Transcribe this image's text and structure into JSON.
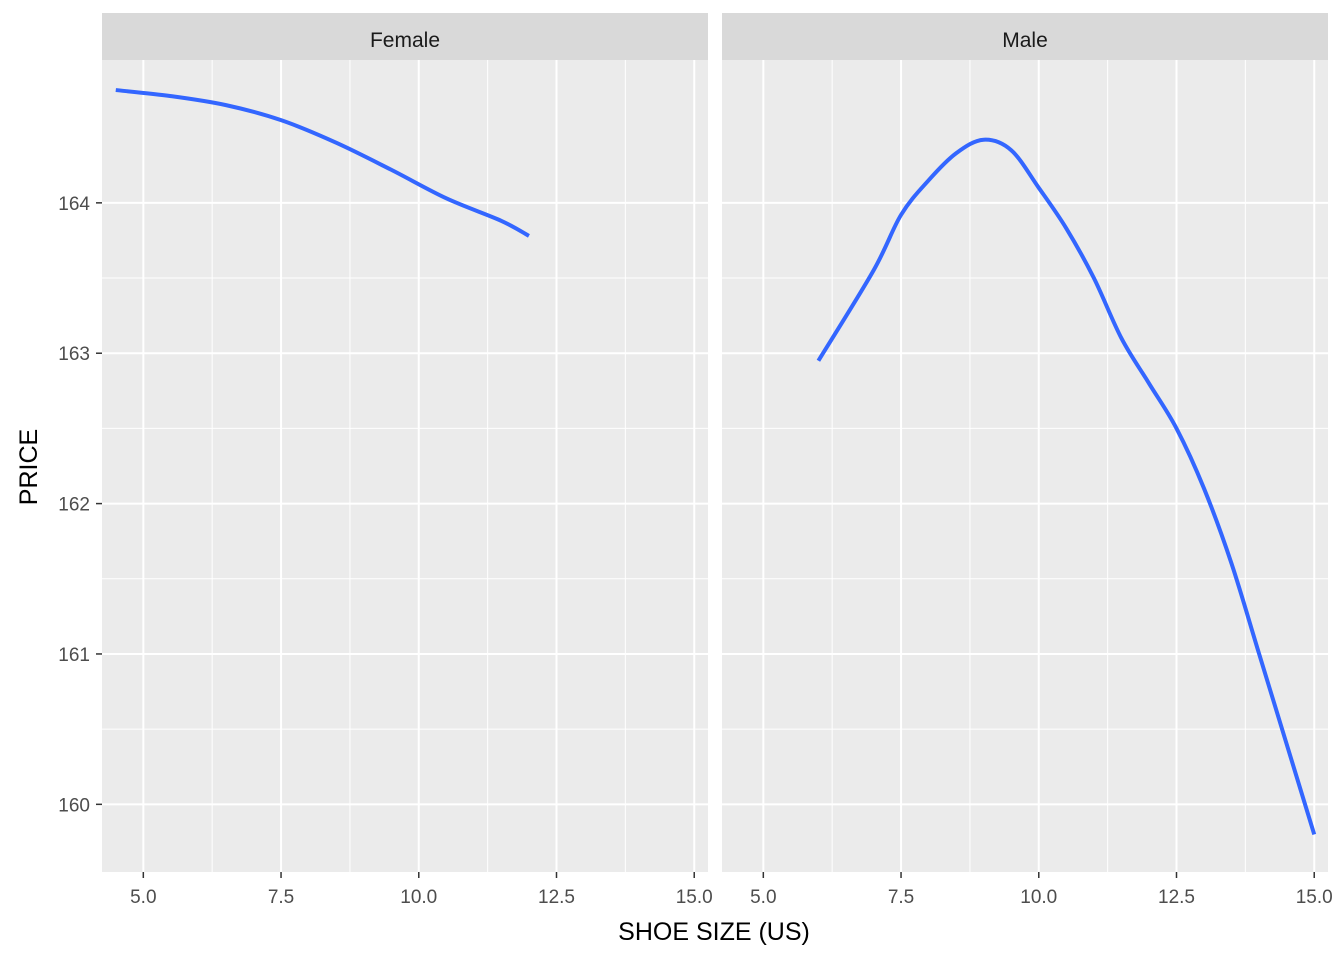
{
  "chart_data": {
    "type": "line",
    "xlabel": "SHOE SIZE (US)",
    "ylabel": "PRICE",
    "xlim": [
      4.25,
      15.25
    ],
    "ylim": [
      159.55,
      164.95
    ],
    "x_ticks": [
      5.0,
      7.5,
      10.0,
      12.5,
      15.0
    ],
    "x_tick_labels": [
      "5.0",
      "7.5",
      "10.0",
      "12.5",
      "15.0"
    ],
    "y_ticks": [
      160,
      161,
      162,
      163,
      164
    ],
    "y_tick_labels": [
      "160",
      "161",
      "162",
      "163",
      "164"
    ],
    "grid": true,
    "line_color": "#3366FF",
    "panel_background": "#EBEBEB",
    "strip_background": "#D9D9D9",
    "grid_color": "#FFFFFF",
    "facets": [
      {
        "label": "Female",
        "x": [
          4.5,
          5.5,
          6.5,
          7.5,
          8.5,
          9.5,
          10.5,
          11.5,
          12.0
        ],
        "y": [
          164.75,
          164.71,
          164.65,
          164.55,
          164.4,
          164.22,
          164.03,
          163.88,
          163.78
        ]
      },
      {
        "label": "Male",
        "x": [
          6.0,
          7.0,
          7.5,
          8.0,
          8.5,
          9.0,
          9.5,
          10.0,
          10.5,
          11.0,
          11.5,
          12.0,
          12.5,
          13.0,
          13.5,
          14.0,
          14.5,
          15.0
        ],
        "y": [
          162.95,
          163.55,
          163.92,
          164.15,
          164.33,
          164.42,
          164.35,
          164.1,
          163.83,
          163.5,
          163.1,
          162.8,
          162.5,
          162.1,
          161.6,
          161.0,
          160.4,
          159.8
        ]
      }
    ]
  }
}
